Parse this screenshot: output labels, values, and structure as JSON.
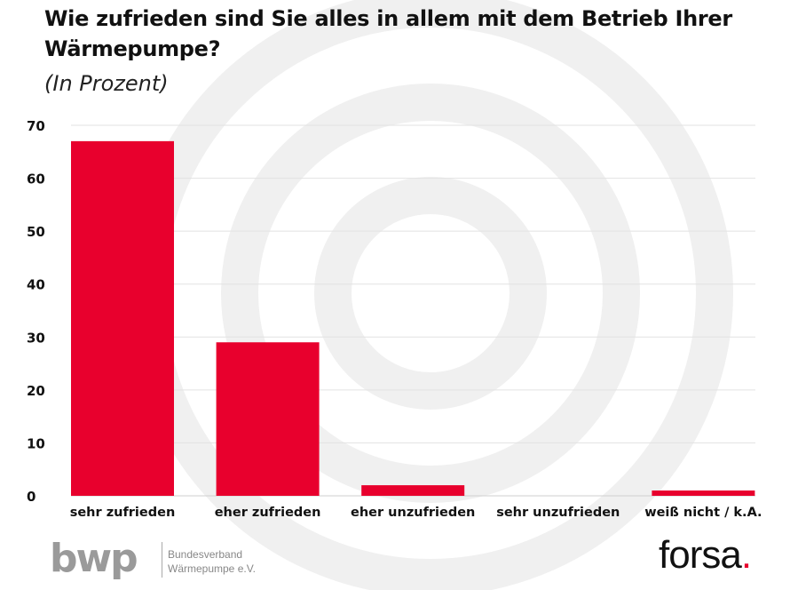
{
  "title": "Wie zufrieden sind Sie alles in allem mit dem Betrieb Ihrer Wärmepumpe?",
  "subtitle": "(In Prozent)",
  "chart_data": {
    "type": "bar",
    "title": "Wie zufrieden sind Sie alles in allem mit dem Betrieb Ihrer Wärmepumpe?",
    "subtitle": "(In Prozent)",
    "categories": [
      "sehr zufrieden",
      "eher zufrieden",
      "eher unzufrieden",
      "sehr unzufrieden",
      "weiß nicht / k.A."
    ],
    "values": [
      67,
      29,
      2,
      0,
      1
    ],
    "xlabel": "",
    "ylabel": "",
    "ylim": [
      0,
      70
    ],
    "yticks": [
      0,
      10,
      20,
      30,
      40,
      50,
      60,
      70
    ],
    "grid": true,
    "bar_color": "#e8002d"
  },
  "logos": {
    "bwp": "bwp",
    "bwp_line1": "Bundesverband",
    "bwp_line2": "Wärmepumpe e.V.",
    "forsa": "forsa",
    "forsa_dot": "."
  }
}
